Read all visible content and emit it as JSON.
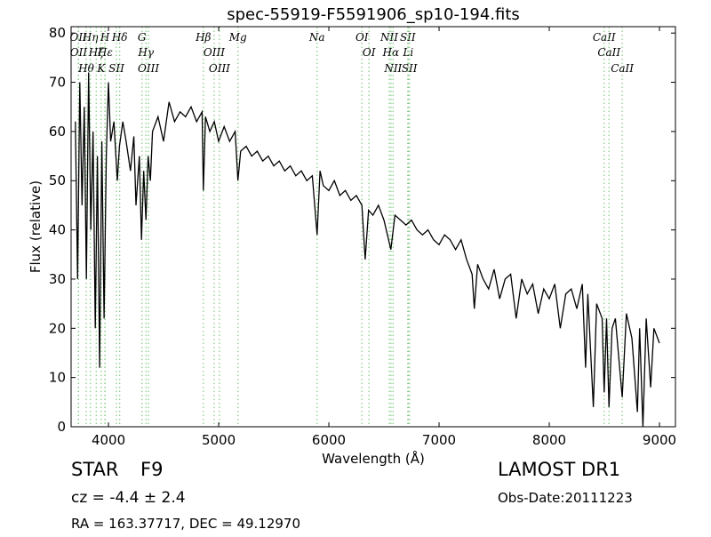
{
  "chart_data": {
    "type": "line",
    "title": "spec-55919-F5591906_sp10-194.fits",
    "x_label": "Wavelength (Å)",
    "y_label": "Flux (relative)",
    "color": "#000000",
    "marker_color": "#7fc97f",
    "xlim": [
      3661,
      9145
    ],
    "xticks": [
      4000,
      5000,
      6000,
      7000,
      8000,
      9000
    ],
    "ylim": [
      0,
      81.3
    ],
    "yticks": [
      0,
      10,
      20,
      30,
      40,
      50,
      60,
      70,
      80
    ],
    "x": [
      3700,
      3720,
      3740,
      3760,
      3780,
      3800,
      3820,
      3840,
      3860,
      3880,
      3900,
      3920,
      3940,
      3960,
      3980,
      4000,
      4020,
      4050,
      4080,
      4100,
      4130,
      4160,
      4200,
      4230,
      4250,
      4280,
      4300,
      4320,
      4340,
      4360,
      4380,
      4400,
      4450,
      4500,
      4550,
      4600,
      4650,
      4700,
      4750,
      4800,
      4850,
      4861,
      4880,
      4920,
      4960,
      5000,
      5050,
      5100,
      5150,
      5175,
      5200,
      5250,
      5300,
      5350,
      5400,
      5450,
      5500,
      5550,
      5600,
      5650,
      5700,
      5750,
      5800,
      5850,
      5893,
      5920,
      5950,
      6000,
      6050,
      6100,
      6150,
      6200,
      6250,
      6300,
      6330,
      6360,
      6400,
      6450,
      6500,
      6563,
      6600,
      6650,
      6700,
      6750,
      6800,
      6850,
      6900,
      6950,
      7000,
      7050,
      7100,
      7150,
      7200,
      7250,
      7300,
      7320,
      7350,
      7400,
      7450,
      7500,
      7550,
      7600,
      7650,
      7700,
      7750,
      7800,
      7850,
      7900,
      7950,
      8000,
      8050,
      8100,
      8150,
      8200,
      8250,
      8300,
      8330,
      8350,
      8400,
      8430,
      8480,
      8498,
      8520,
      8542,
      8570,
      8600,
      8662,
      8700,
      8750,
      8800,
      8820,
      8850,
      8880,
      8920,
      8950,
      9000
    ],
    "values": [
      62,
      30,
      70,
      45,
      65,
      30,
      72,
      40,
      60,
      20,
      55,
      12,
      58,
      22,
      55,
      70,
      58,
      62,
      50,
      57,
      62,
      58,
      52,
      59,
      45,
      55,
      38,
      52,
      42,
      55,
      50,
      60,
      63,
      58,
      66,
      62,
      64,
      63,
      65,
      62,
      64,
      48,
      63,
      60,
      62,
      58,
      61,
      58,
      60,
      50,
      56,
      57,
      55,
      56,
      54,
      55,
      53,
      54,
      52,
      53,
      51,
      52,
      50,
      51,
      39,
      52,
      49,
      48,
      50,
      47,
      48,
      46,
      47,
      45,
      34,
      44,
      43,
      45,
      42,
      36,
      43,
      42,
      41,
      42,
      40,
      39,
      40,
      38,
      37,
      39,
      38,
      36,
      38,
      34,
      31,
      24,
      33,
      30,
      28,
      32,
      26,
      30,
      31,
      22,
      30,
      27,
      29,
      23,
      28,
      26,
      29,
      20,
      27,
      28,
      24,
      29,
      12,
      27,
      4,
      25,
      22,
      7,
      22,
      4,
      20,
      22,
      6,
      23,
      18,
      3,
      20,
      0,
      22,
      8,
      20,
      17
    ],
    "markers": [
      {
        "x": 3727,
        "label": "OII"
      },
      {
        "x": 3729,
        "label": "OII"
      },
      {
        "x": 3798,
        "label": "Hθ"
      },
      {
        "x": 3835,
        "label": "Hη"
      },
      {
        "x": 3889,
        "label": "Hζ"
      },
      {
        "x": 3934,
        "label": "K"
      },
      {
        "x": 3968,
        "label": "H"
      },
      {
        "x": 3970,
        "label": "Hε"
      },
      {
        "x": 4072,
        "label": "SII"
      },
      {
        "x": 4102,
        "label": "Hδ"
      },
      {
        "x": 4304,
        "label": "G"
      },
      {
        "x": 4340,
        "label": "Hγ"
      },
      {
        "x": 4363,
        "label": "OIII"
      },
      {
        "x": 4861,
        "label": "Hβ"
      },
      {
        "x": 4959,
        "label": "OIII"
      },
      {
        "x": 5007,
        "label": "OIII"
      },
      {
        "x": 5175,
        "label": "Mg"
      },
      {
        "x": 5893,
        "label": "Na"
      },
      {
        "x": 6300,
        "label": "OI"
      },
      {
        "x": 6364,
        "label": "OI"
      },
      {
        "x": 6548,
        "label": "NII"
      },
      {
        "x": 6563,
        "label": "Hα"
      },
      {
        "x": 6583,
        "label": "NII"
      },
      {
        "x": 6716,
        "label": "SII"
      },
      {
        "x": 6720,
        "label": "Li"
      },
      {
        "x": 6731,
        "label": "SII"
      },
      {
        "x": 8498,
        "label": "CaII"
      },
      {
        "x": 8542,
        "label": "CaII"
      },
      {
        "x": 8662,
        "label": "CaII"
      }
    ],
    "info": {
      "class": "STAR",
      "subclass": "F9",
      "redshift": "cz = -4.4 ± 2.4",
      "source": "LAMOST DR1",
      "obs_date": "Obs-Date:20111223",
      "coords": "RA = 163.37717, DEC = 49.12970"
    }
  }
}
